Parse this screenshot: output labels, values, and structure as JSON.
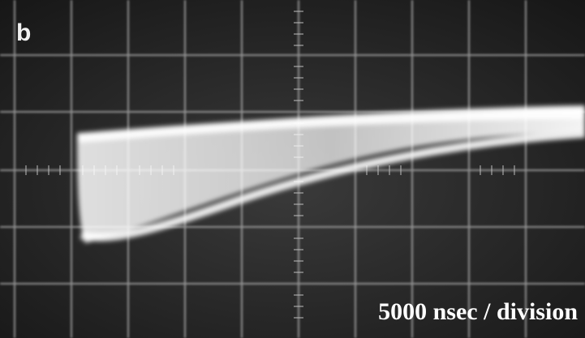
{
  "panel_label": "b",
  "caption": "5000 nsec / division"
}
